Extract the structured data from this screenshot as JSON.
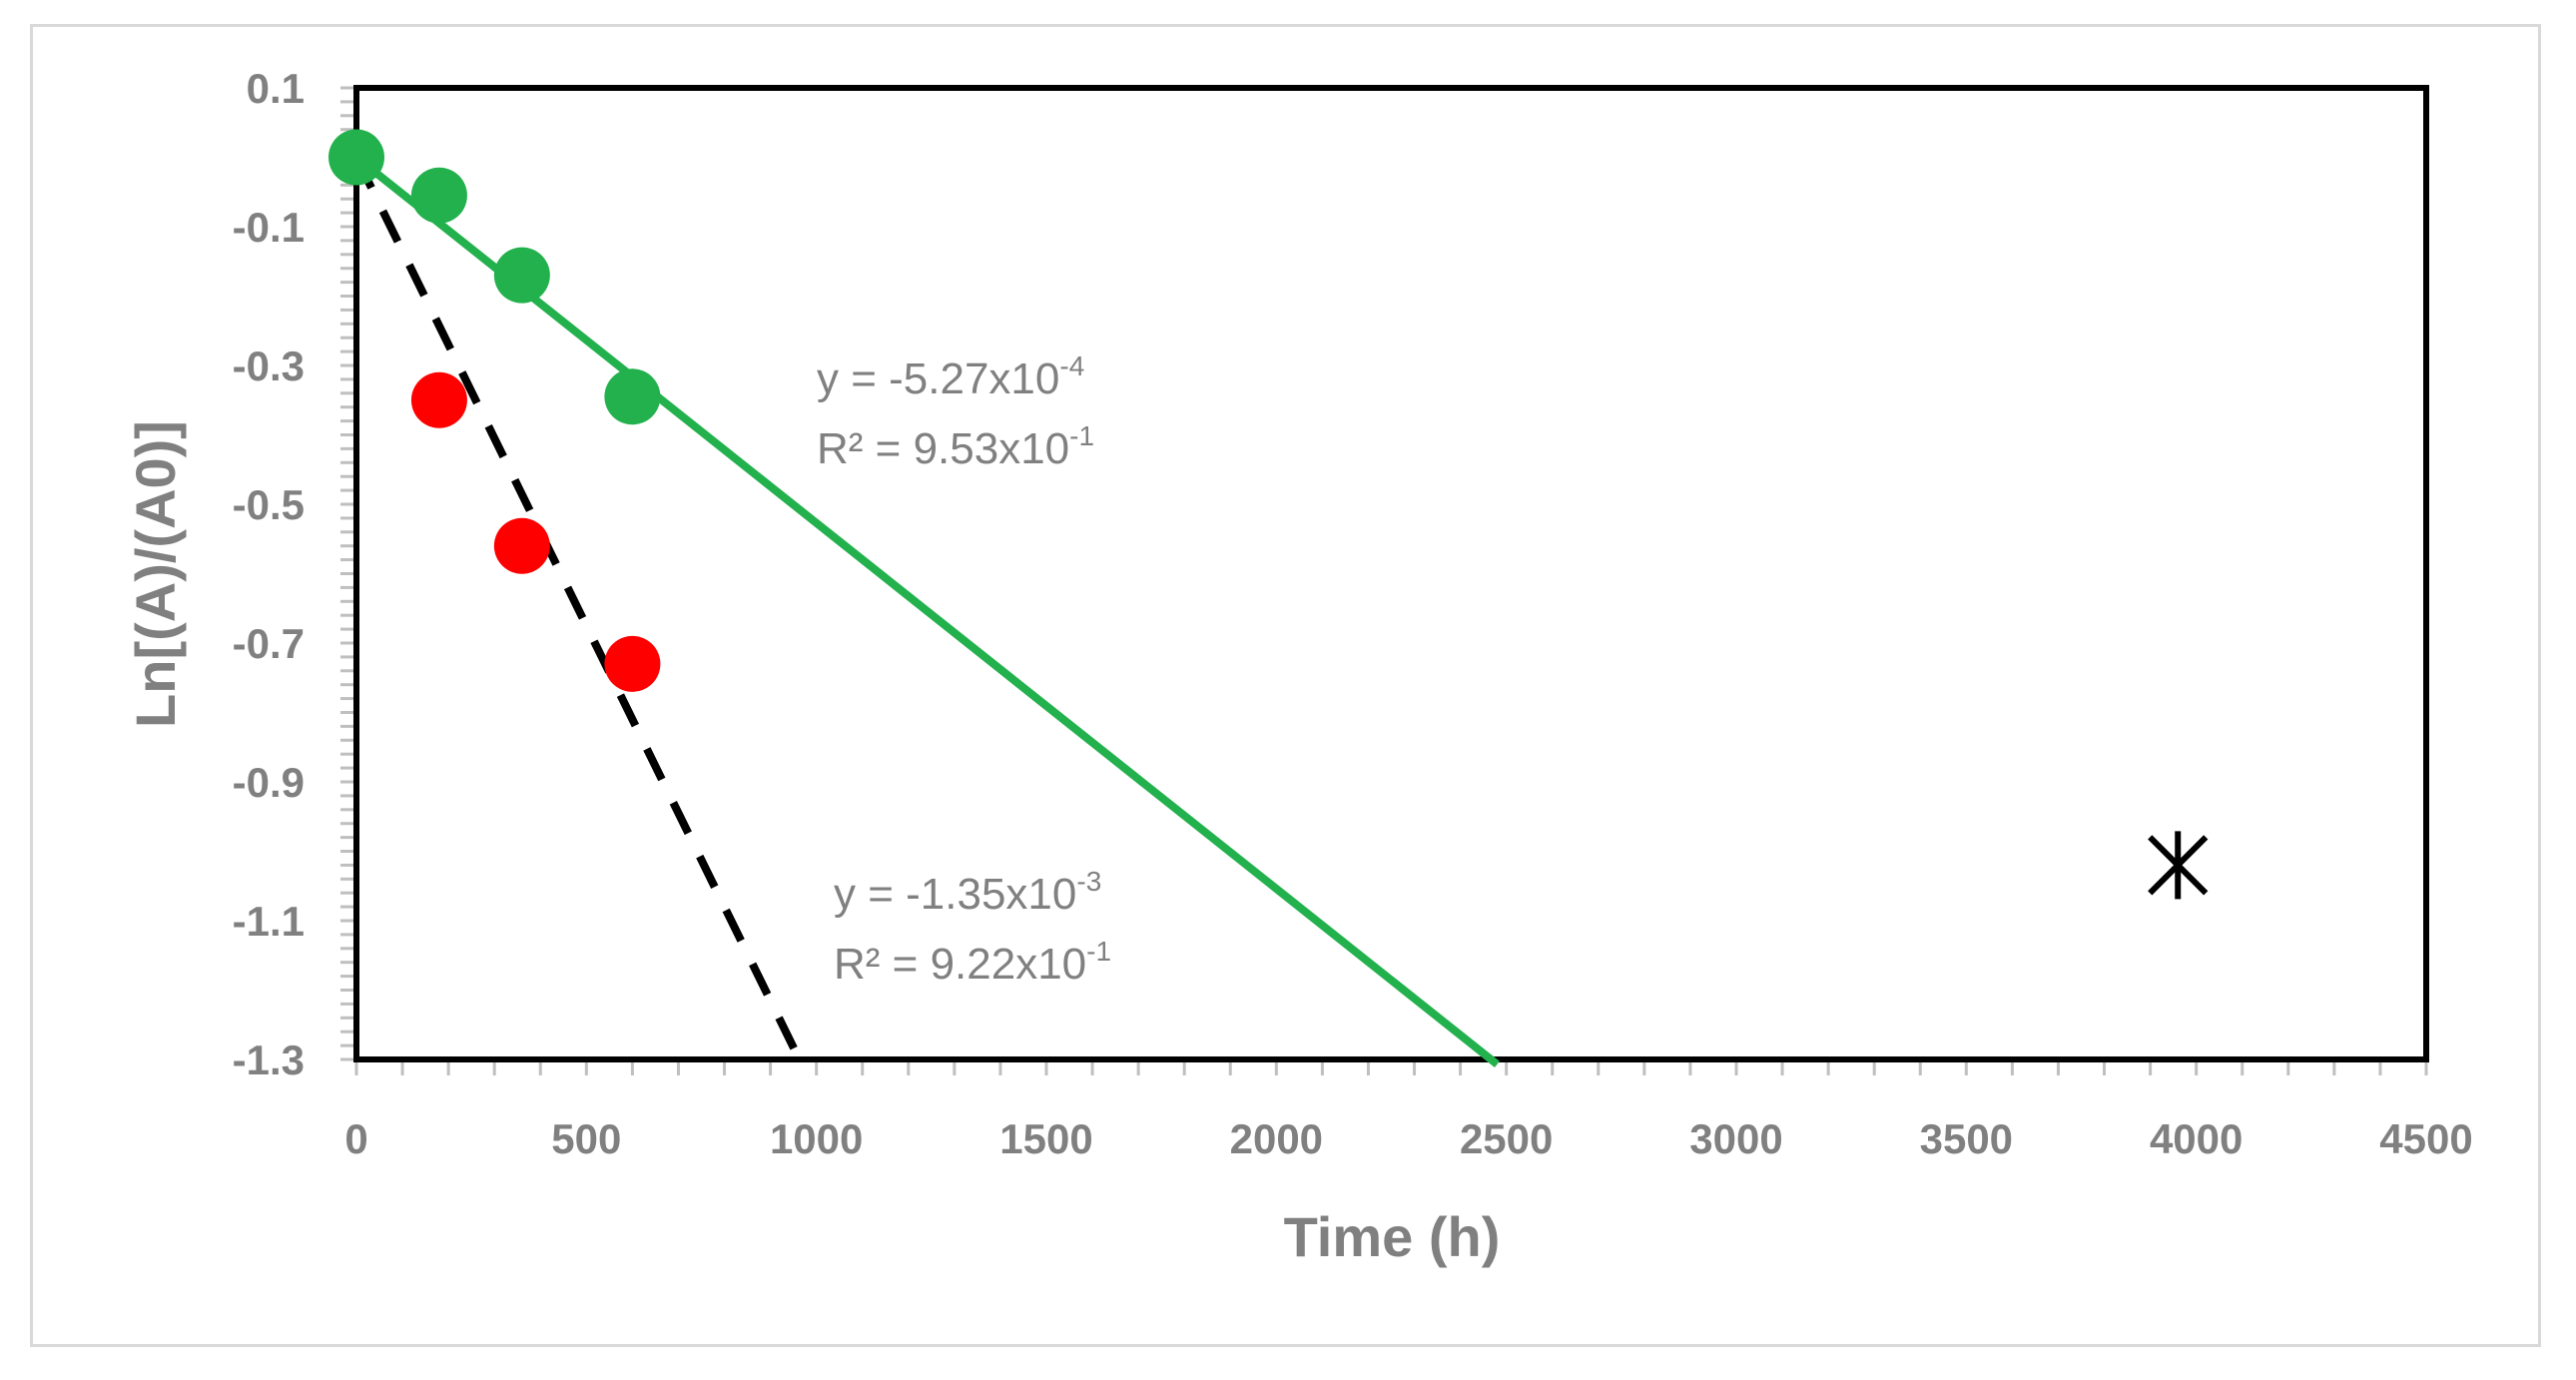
{
  "chart_data": {
    "type": "scatter",
    "xlabel": "Time (h)",
    "ylabel": "Ln[(A)/(A0)]",
    "xlim": [
      0,
      4500
    ],
    "ylim": [
      -1.3,
      0.1
    ],
    "x_ticks": [
      "0",
      "500",
      "1000",
      "1500",
      "2000",
      "2500",
      "3000",
      "3500",
      "4000",
      "4500"
    ],
    "y_ticks": [
      "0.1",
      "-0.1",
      "-0.3",
      "-0.5",
      "-0.7",
      "-0.9",
      "-1.1",
      "-1.3"
    ],
    "grid": false,
    "series": [
      {
        "color": "#22b14c",
        "marker": "circle",
        "points": [
          [
            0,
            0
          ],
          [
            180,
            -0.055
          ],
          [
            360,
            -0.17
          ],
          [
            600,
            -0.345
          ]
        ],
        "trendline": {
          "slope": -0.000527,
          "intercept": 0,
          "style": "solid",
          "x_end": 2480
        }
      },
      {
        "color": "#ff0000",
        "marker": "circle",
        "points": [
          [
            180,
            -0.35
          ],
          [
            360,
            -0.56
          ],
          [
            600,
            -0.73
          ]
        ],
        "trendline": {
          "slope": -0.00135,
          "intercept": 0,
          "style": "dashed",
          "color": "#000000",
          "x_end": 965
        }
      },
      {
        "color": "#000000",
        "marker": "asterisk",
        "points": [
          [
            3960,
            -1.02
          ]
        ]
      }
    ],
    "annotations": [
      {
        "line1_base": "y = -5.27x10",
        "line1_sup": "-4",
        "line2_base": "R² = 9.53x10",
        "line2_sup": "-1"
      },
      {
        "line1_base": "y = -1.35x10",
        "line1_sup": "-3",
        "line2_base": "R² = 9.22x10",
        "line2_sup": "-1"
      }
    ]
  }
}
